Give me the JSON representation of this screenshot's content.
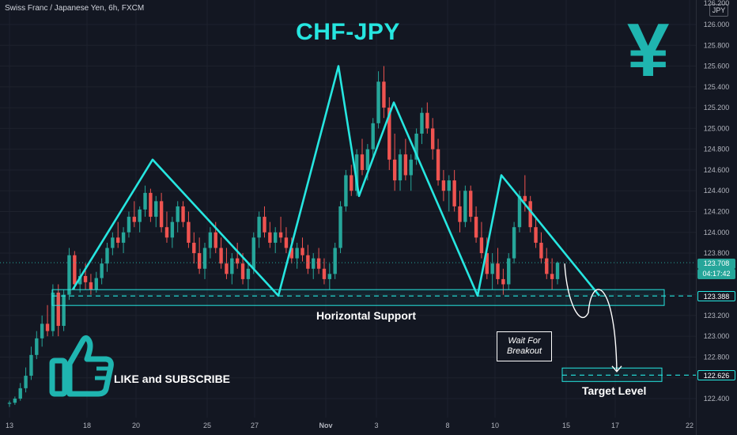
{
  "header": {
    "symbol_line": "Swiss Franc / Japanese Yen, 6h, FXCM"
  },
  "title": "CHF-JPY",
  "currency_badge": "JPY",
  "yen_symbol": "¥",
  "icons": {
    "thumb": "thumbs-up-icon"
  },
  "colors": {
    "accent": "#26e6e0",
    "up": "#26a69a",
    "down": "#ef5350",
    "background": "#131722"
  },
  "annotations": {
    "support": "Horizontal Support",
    "target": "Target Level",
    "callout_line1": "Wait For",
    "callout_line2": "Breakout",
    "like": "LIKE and SUBSCRIBE"
  },
  "price_tags": {
    "last": "123.708",
    "timer": "04:17:42",
    "support": "123.388",
    "target": "122.626",
    "top_partial": "126.200"
  },
  "chart_data": {
    "type": "candlestick",
    "title": "CHF-JPY",
    "y_ticks": [
      122.4,
      122.6,
      122.8,
      123.0,
      123.2,
      123.4,
      123.6,
      123.8,
      124.0,
      124.2,
      124.4,
      124.6,
      124.8,
      125.0,
      125.2,
      125.4,
      125.6,
      125.8,
      126.0
    ],
    "x_ticks": [
      "13",
      "18",
      "20",
      "25",
      "27",
      "Nov",
      "3",
      "8",
      "10",
      "15",
      "17",
      "22"
    ],
    "ylim": [
      122.3,
      126.2
    ],
    "support_level": 123.388,
    "target_level": 122.626,
    "last_price": 123.708,
    "pattern_points": [
      {
        "date": "Oct 17",
        "price": 123.45
      },
      {
        "date": "Oct 21",
        "price": 124.7
      },
      {
        "date": "Oct 28",
        "price": 123.39
      },
      {
        "date": "Nov 1",
        "price": 125.6
      },
      {
        "date": "Nov 2",
        "price": 124.35
      },
      {
        "date": "Nov 4",
        "price": 125.25
      },
      {
        "date": "Nov 9",
        "price": 123.39
      },
      {
        "date": "Nov 11",
        "price": 124.55
      },
      {
        "date": "Nov 16",
        "price": 123.39
      }
    ],
    "projection_points": [
      {
        "date": "Nov 15",
        "price": 123.7
      },
      {
        "date": "Nov 15",
        "price": 123.15
      },
      {
        "date": "Nov 16",
        "price": 123.45
      },
      {
        "date": "Nov 17",
        "price": 122.66
      }
    ],
    "candles": [
      [
        122.35,
        122.38,
        122.32,
        122.36
      ],
      [
        122.36,
        122.42,
        122.34,
        122.4
      ],
      [
        122.4,
        122.55,
        122.38,
        122.5
      ],
      [
        122.5,
        122.7,
        122.46,
        122.62
      ],
      [
        122.62,
        122.9,
        122.58,
        122.82
      ],
      [
        122.82,
        123.05,
        122.78,
        122.98
      ],
      [
        122.98,
        123.2,
        122.9,
        123.12
      ],
      [
        123.12,
        123.3,
        123.0,
        123.05
      ],
      [
        123.05,
        123.5,
        123.0,
        123.42
      ],
      [
        123.42,
        123.5,
        123.0,
        123.1
      ],
      [
        123.1,
        123.45,
        123.05,
        123.4
      ],
      [
        123.4,
        123.85,
        123.35,
        123.78
      ],
      [
        123.78,
        123.82,
        123.45,
        123.5
      ],
      [
        123.5,
        123.65,
        123.42,
        123.58
      ],
      [
        123.58,
        123.7,
        123.45,
        123.52
      ],
      [
        123.52,
        123.6,
        123.4,
        123.45
      ],
      [
        123.45,
        123.62,
        123.42,
        123.56
      ],
      [
        123.56,
        123.75,
        123.5,
        123.7
      ],
      [
        123.7,
        123.9,
        123.62,
        123.85
      ],
      [
        123.85,
        124.0,
        123.78,
        123.95
      ],
      [
        123.95,
        124.1,
        123.85,
        123.9
      ],
      [
        123.9,
        124.05,
        123.8,
        124.0
      ],
      [
        124.0,
        124.2,
        123.95,
        124.15
      ],
      [
        124.15,
        124.3,
        124.05,
        124.1
      ],
      [
        124.1,
        124.25,
        124.0,
        124.22
      ],
      [
        124.22,
        124.45,
        124.15,
        124.38
      ],
      [
        124.38,
        124.42,
        124.1,
        124.15
      ],
      [
        124.15,
        124.35,
        124.05,
        124.3
      ],
      [
        124.3,
        124.38,
        124.0,
        124.05
      ],
      [
        124.05,
        124.2,
        123.9,
        123.95
      ],
      [
        123.95,
        124.15,
        123.85,
        124.1
      ],
      [
        124.1,
        124.3,
        124.0,
        124.25
      ],
      [
        124.25,
        124.3,
        124.05,
        124.1
      ],
      [
        124.1,
        124.2,
        123.85,
        123.9
      ],
      [
        123.9,
        124.0,
        123.7,
        123.8
      ],
      [
        123.8,
        123.95,
        123.6,
        123.65
      ],
      [
        123.65,
        123.9,
        123.55,
        123.85
      ],
      [
        123.85,
        124.05,
        123.75,
        124.0
      ],
      [
        124.0,
        124.1,
        123.8,
        123.85
      ],
      [
        123.85,
        123.95,
        123.65,
        123.7
      ],
      [
        123.7,
        123.85,
        123.55,
        123.6
      ],
      [
        123.6,
        123.8,
        123.5,
        123.75
      ],
      [
        123.75,
        123.9,
        123.65,
        123.7
      ],
      [
        123.7,
        123.8,
        123.5,
        123.55
      ],
      [
        123.55,
        123.7,
        123.45,
        123.65
      ],
      [
        123.65,
        124.0,
        123.6,
        123.95
      ],
      [
        123.95,
        124.2,
        123.85,
        124.15
      ],
      [
        124.15,
        124.25,
        123.95,
        124.0
      ],
      [
        124.0,
        124.1,
        123.85,
        123.9
      ],
      [
        123.9,
        124.05,
        123.8,
        124.0
      ],
      [
        124.0,
        124.15,
        123.9,
        123.95
      ],
      [
        123.95,
        124.05,
        123.8,
        123.85
      ],
      [
        123.85,
        123.95,
        123.7,
        123.75
      ],
      [
        123.75,
        123.9,
        123.65,
        123.85
      ],
      [
        123.85,
        123.95,
        123.72,
        123.78
      ],
      [
        123.78,
        123.88,
        123.6,
        123.65
      ],
      [
        123.65,
        123.8,
        123.55,
        123.75
      ],
      [
        123.75,
        123.85,
        123.6,
        123.65
      ],
      [
        123.65,
        123.75,
        123.5,
        123.55
      ],
      [
        123.55,
        123.7,
        123.45,
        123.6
      ],
      [
        123.6,
        123.9,
        123.55,
        123.85
      ],
      [
        123.85,
        124.3,
        123.8,
        124.25
      ],
      [
        124.25,
        124.6,
        124.2,
        124.55
      ],
      [
        124.55,
        124.65,
        124.35,
        124.4
      ],
      [
        124.4,
        124.8,
        124.35,
        124.75
      ],
      [
        124.75,
        124.9,
        124.55,
        124.6
      ],
      [
        124.6,
        124.85,
        124.5,
        124.8
      ],
      [
        124.8,
        125.1,
        124.7,
        125.05
      ],
      [
        125.05,
        125.55,
        125.0,
        125.45
      ],
      [
        125.45,
        125.6,
        125.1,
        125.2
      ],
      [
        125.2,
        125.3,
        124.6,
        124.7
      ],
      [
        124.7,
        124.95,
        124.4,
        124.5
      ],
      [
        124.5,
        124.8,
        124.4,
        124.75
      ],
      [
        124.75,
        124.9,
        124.5,
        124.55
      ],
      [
        124.55,
        124.75,
        124.4,
        124.7
      ],
      [
        124.7,
        125.0,
        124.65,
        124.95
      ],
      [
        124.95,
        125.2,
        124.85,
        125.15
      ],
      [
        125.15,
        125.25,
        124.95,
        125.0
      ],
      [
        125.0,
        125.1,
        124.7,
        124.8
      ],
      [
        124.8,
        124.9,
        124.45,
        124.5
      ],
      [
        124.5,
        124.6,
        124.3,
        124.4
      ],
      [
        124.4,
        124.55,
        124.2,
        124.5
      ],
      [
        124.5,
        124.6,
        124.2,
        124.25
      ],
      [
        124.25,
        124.4,
        124.0,
        124.1
      ],
      [
        124.1,
        124.45,
        124.05,
        124.4
      ],
      [
        124.4,
        124.45,
        124.1,
        124.15
      ],
      [
        124.15,
        124.25,
        123.9,
        123.95
      ],
      [
        123.95,
        124.1,
        123.75,
        123.8
      ],
      [
        123.8,
        123.95,
        123.55,
        123.6
      ],
      [
        123.6,
        123.8,
        123.45,
        123.7
      ],
      [
        123.7,
        123.85,
        123.5,
        123.55
      ],
      [
        123.55,
        123.65,
        123.4,
        123.5
      ],
      [
        123.5,
        123.8,
        123.45,
        123.75
      ],
      [
        123.75,
        124.1,
        123.7,
        124.05
      ],
      [
        124.05,
        124.4,
        124.0,
        124.35
      ],
      [
        124.35,
        124.55,
        124.2,
        124.3
      ],
      [
        124.3,
        124.35,
        124.0,
        124.05
      ],
      [
        124.05,
        124.15,
        123.85,
        123.9
      ],
      [
        123.9,
        124.0,
        123.7,
        123.75
      ],
      [
        123.75,
        123.85,
        123.55,
        123.6
      ],
      [
        123.6,
        123.75,
        123.45,
        123.55
      ],
      [
        123.55,
        123.72,
        123.5,
        123.708
      ]
    ]
  }
}
